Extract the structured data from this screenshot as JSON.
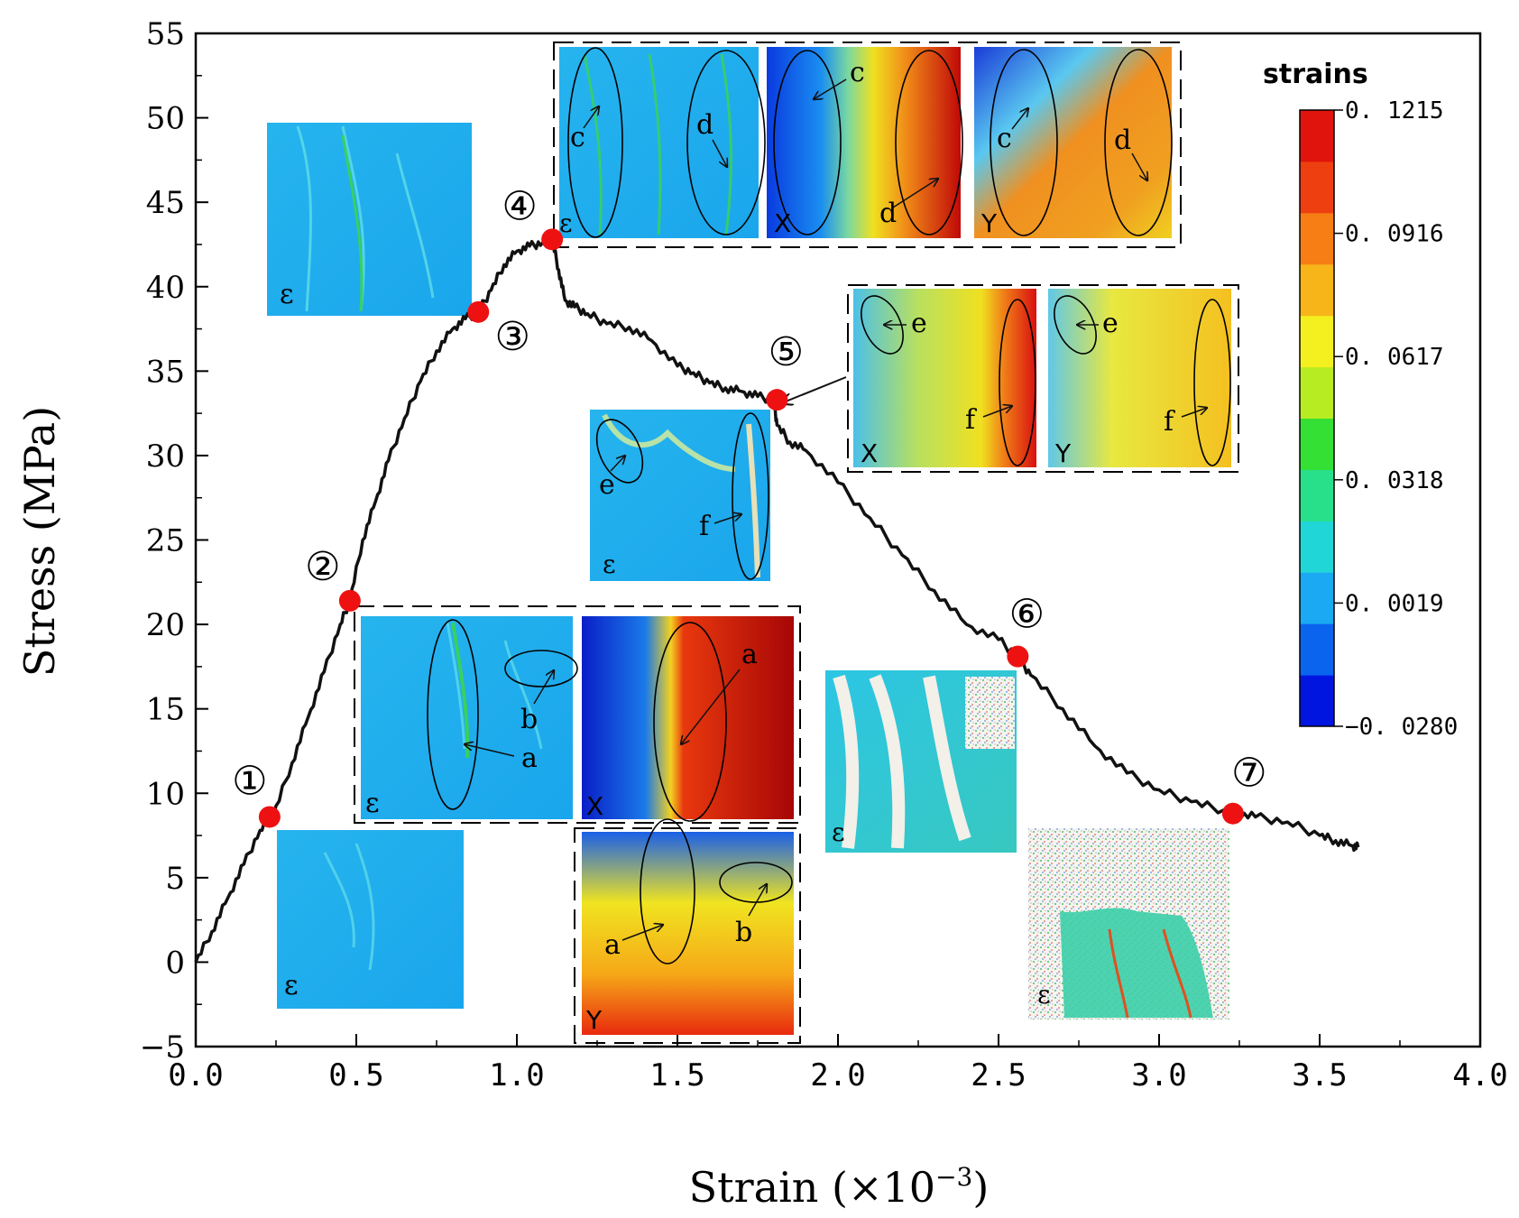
{
  "chart_data": {
    "type": "line",
    "title": "",
    "xlabel": "Strain (×10",
    "xlabel_exponent": "−3",
    "xlabel_close": ")",
    "ylabel": "Stress (MPa)",
    "xlim": [
      0,
      4.0
    ],
    "ylim": [
      -5,
      55
    ],
    "x_ticks": [
      0.0,
      0.5,
      1.0,
      1.5,
      2.0,
      2.5,
      3.0,
      3.5,
      4.0
    ],
    "x_tick_labels": [
      "0.0",
      "0.5",
      "1.0",
      "1.5",
      "2.0",
      "2.5",
      "3.0",
      "3.5",
      "4.0"
    ],
    "y_ticks": [
      -5,
      0,
      5,
      10,
      15,
      20,
      25,
      30,
      35,
      40,
      45,
      50,
      55
    ],
    "y_tick_labels": [
      "−5",
      "0",
      "5",
      "10",
      "15",
      "20",
      "25",
      "30",
      "35",
      "40",
      "45",
      "50",
      "55"
    ],
    "series": [
      {
        "name": "stress-strain curve",
        "color": "#111111",
        "x": [
          0.0,
          0.05,
          0.1,
          0.15,
          0.2,
          0.24,
          0.3,
          0.35,
          0.4,
          0.45,
          0.48,
          0.52,
          0.56,
          0.6,
          0.65,
          0.7,
          0.75,
          0.8,
          0.84,
          0.88,
          0.92,
          0.96,
          1.0,
          1.04,
          1.08,
          1.11,
          1.13,
          1.15,
          1.18,
          1.22,
          1.28,
          1.35,
          1.42,
          1.5,
          1.55,
          1.6,
          1.65,
          1.7,
          1.75,
          1.8,
          1.81,
          1.85,
          1.9,
          2.0,
          2.1,
          2.2,
          2.3,
          2.4,
          2.5,
          2.56,
          2.6,
          2.7,
          2.8,
          2.9,
          3.0,
          3.1,
          3.2,
          3.23,
          3.3,
          3.4,
          3.5,
          3.55,
          3.6,
          3.62
        ],
        "y": [
          0.0,
          1.8,
          3.8,
          5.8,
          7.8,
          8.6,
          11.8,
          14.5,
          17.2,
          20.0,
          21.4,
          25.0,
          27.3,
          29.7,
          32.2,
          34.4,
          36.2,
          37.5,
          38.1,
          38.5,
          39.8,
          41.3,
          42.1,
          42.4,
          42.6,
          42.8,
          41.0,
          39.2,
          38.8,
          38.4,
          37.8,
          37.6,
          36.8,
          35.3,
          34.9,
          34.3,
          34.0,
          33.8,
          33.5,
          33.3,
          31.8,
          30.8,
          30.3,
          28.4,
          26.3,
          24.1,
          22.0,
          20.0,
          19.1,
          18.1,
          17.0,
          15.0,
          12.8,
          11.2,
          10.2,
          9.5,
          9.0,
          8.8,
          8.6,
          8.3,
          7.5,
          7.2,
          6.9,
          6.8
        ]
      }
    ],
    "marked_points": [
      {
        "label": "①",
        "x": 0.23,
        "y": 8.6
      },
      {
        "label": "②",
        "x": 0.48,
        "y": 21.4
      },
      {
        "label": "③",
        "x": 0.88,
        "y": 38.5
      },
      {
        "label": "④",
        "x": 1.11,
        "y": 42.8
      },
      {
        "label": "⑤",
        "x": 1.81,
        "y": 33.3
      },
      {
        "label": "⑥",
        "x": 2.56,
        "y": 18.1
      },
      {
        "label": "⑦",
        "x": 3.23,
        "y": 8.8
      }
    ],
    "marker_color": "#ee1111",
    "colorbar": {
      "title": "strains",
      "min": -0.028,
      "max": 0.1215,
      "tick_values": [
        0.1215,
        0.0916,
        0.0617,
        0.0318,
        0.0019,
        -0.028
      ],
      "tick_labels": [
        "0. 1215",
        "0. 0916",
        "0. 0617",
        "0. 0318",
        "0. 0019",
        "−0. 0280"
      ],
      "colors": [
        "#0016e0",
        "#0b64ee",
        "#1aa9f2",
        "#21d6d6",
        "#28e08a",
        "#34e034",
        "#b8ec22",
        "#f4ef1e",
        "#f7b519",
        "#f77d15",
        "#ee3f10",
        "#e0140c"
      ]
    },
    "insets": [
      {
        "id": "inset-1-eps",
        "field": "ε",
        "marks": []
      },
      {
        "id": "inset-2-eps",
        "field": "ε",
        "marks": [
          "a",
          "b"
        ]
      },
      {
        "id": "inset-2-x",
        "field": "X",
        "marks": [
          "a"
        ]
      },
      {
        "id": "inset-2-y",
        "field": "Y",
        "marks": [
          "a",
          "b"
        ]
      },
      {
        "id": "inset-3-eps",
        "field": "ε",
        "marks": []
      },
      {
        "id": "inset-4-eps",
        "field": "ε",
        "marks": [
          "c",
          "d"
        ]
      },
      {
        "id": "inset-4-x",
        "field": "X",
        "marks": [
          "c",
          "d"
        ]
      },
      {
        "id": "inset-4-y",
        "field": "Y",
        "marks": [
          "c",
          "d"
        ]
      },
      {
        "id": "inset-5-eps",
        "field": "ε",
        "marks": [
          "e",
          "f"
        ]
      },
      {
        "id": "inset-5-x",
        "field": "X",
        "marks": [
          "e",
          "f"
        ]
      },
      {
        "id": "inset-5-y",
        "field": "Y",
        "marks": [
          "e",
          "f"
        ]
      },
      {
        "id": "inset-6-eps",
        "field": "ε",
        "marks": []
      },
      {
        "id": "inset-7-eps",
        "field": "ε",
        "marks": []
      }
    ]
  }
}
